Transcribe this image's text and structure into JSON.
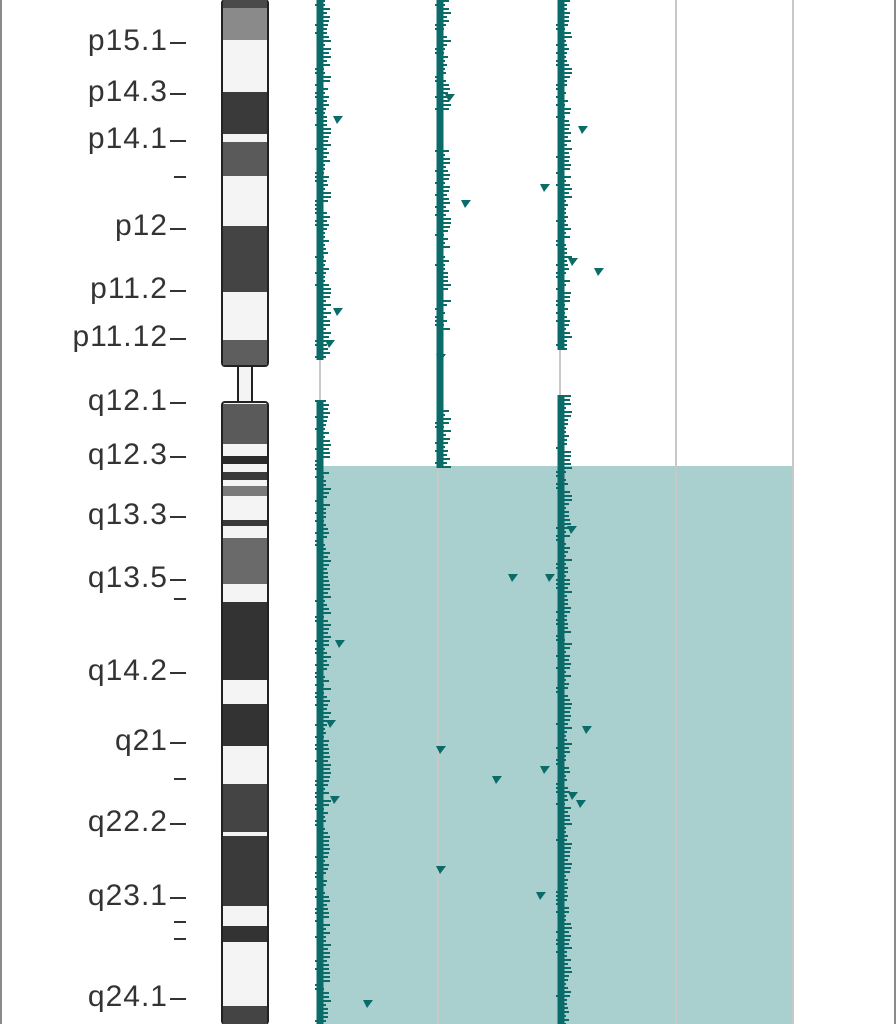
{
  "ideogram": {
    "band_labels": [
      "p15.1",
      "p14.3",
      "p14.1",
      "p12",
      "p11.2",
      "p11.12",
      "q12.1",
      "q12.3",
      "q13.3",
      "q13.5",
      "q14.2",
      "q21",
      "q22.2",
      "q23.1",
      "q24.1"
    ]
  },
  "colors": {
    "track": "#0b6b68",
    "highlight": "#a9cfcf",
    "gridline": "#c8c8c8",
    "frame": "#8a8a8a"
  }
}
